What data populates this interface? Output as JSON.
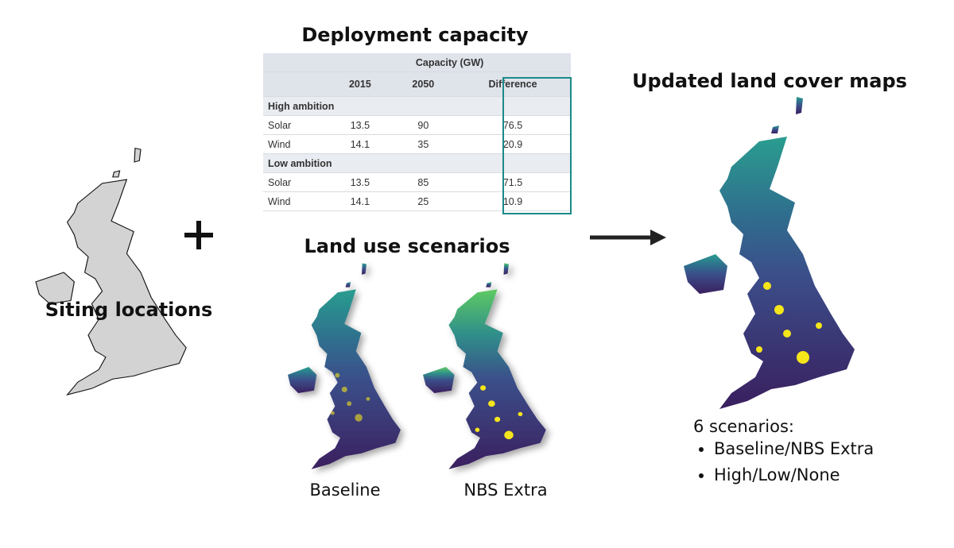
{
  "siting": {
    "label": "Siting locations"
  },
  "deployment": {
    "title": "Deployment capacity",
    "table": {
      "group_header": "Capacity (GW)",
      "columns": [
        2015,
        2050,
        "Difference"
      ],
      "sections": [
        {
          "name": "High ambition",
          "rows": [
            [
              "Solar",
              13.5,
              90,
              76.5
            ],
            [
              "Wind",
              14.1,
              35,
              20.9
            ]
          ]
        },
        {
          "name": "Low ambition",
          "rows": [
            [
              "Solar",
              13.5,
              85,
              71.5
            ],
            [
              "Wind",
              14.1,
              25,
              10.9
            ]
          ]
        }
      ]
    }
  },
  "land_use": {
    "title": "Land use scenarios",
    "maps": [
      "Baseline",
      "NBS Extra"
    ]
  },
  "updated": {
    "title": "Updated land cover maps",
    "note_title": "6 scenarios:",
    "bullets": [
      "Baseline/NBS Extra",
      "High/Low/None"
    ]
  }
}
